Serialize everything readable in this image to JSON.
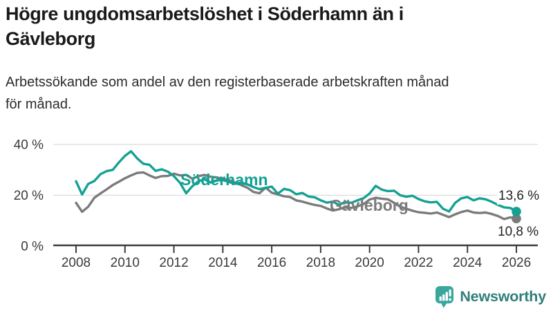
{
  "header": {
    "title_line1": "Högre ungdomsarbetslöshet i Söderhamn än i",
    "title_line2": "Gävleborg",
    "subtitle_line1": "Arbetssökande som andel av den registerbaserade arbetskraften månad",
    "subtitle_line2": "för månad."
  },
  "chart_data": {
    "type": "line",
    "title": "Högre ungdomsarbetslöshet i Söderhamn än i Gävleborg",
    "subtitle": "Arbetssökande som andel av den registerbaserade arbetskraften månad för månad.",
    "xlabel": "",
    "ylabel": "",
    "x_unit": "year (quarterly estimates of monthly series)",
    "x_start": 2008,
    "x_step": 0.25,
    "x_end": 2026,
    "xlim": [
      2007.1,
      2026.9
    ],
    "ylim": [
      0,
      44
    ],
    "x_ticks": [
      2008,
      2010,
      2012,
      2014,
      2016,
      2018,
      2020,
      2022,
      2024,
      2026
    ],
    "y_ticks": [
      0,
      20,
      40
    ],
    "y_tick_labels": [
      "0 %",
      "20 %",
      "40 %"
    ],
    "grid": "horizontal",
    "legend_position": "inline-labels",
    "axis_color": "#3a3a3a",
    "gridline_color": "#dcdcdc",
    "series": [
      {
        "name": "Söderhamn",
        "color": "#13a193",
        "end_label": "13,6 %",
        "end_value": 13.6,
        "values": [
          25.5,
          20.3,
          24.5,
          25.6,
          28.3,
          29.5,
          30.0,
          32.9,
          35.5,
          37.3,
          34.5,
          32.4,
          32.0,
          29.6,
          30.2,
          29.3,
          27.5,
          24.9,
          20.8,
          23.5,
          25.5,
          26.3,
          25.0,
          25.8,
          26.0,
          25.2,
          24.5,
          25.0,
          24.3,
          23.2,
          22.4,
          22.9,
          23.4,
          20.6,
          22.5,
          22.0,
          20.4,
          20.9,
          19.5,
          19.2,
          18.0,
          17.1,
          17.5,
          16.2,
          17.4,
          17.0,
          18.0,
          18.8,
          20.7,
          23.7,
          22.2,
          21.6,
          21.8,
          20.0,
          19.4,
          19.8,
          18.5,
          17.6,
          17.2,
          17.4,
          14.7,
          13.6,
          17.0,
          18.8,
          19.3,
          18.0,
          18.8,
          18.4,
          17.4,
          16.2,
          15.2,
          15.0,
          13.6
        ]
      },
      {
        "name": "Gävleborg",
        "color": "#7b7b7b",
        "end_label": "10,8 %",
        "end_value": 10.8,
        "values": [
          17.0,
          13.5,
          15.5,
          19.0,
          20.7,
          22.3,
          24.0,
          25.3,
          26.7,
          27.8,
          28.8,
          29.0,
          27.8,
          26.8,
          27.5,
          27.6,
          28.5,
          27.8,
          28.0,
          26.5,
          27.5,
          28.0,
          27.3,
          27.0,
          26.5,
          26.0,
          25.0,
          24.0,
          23.0,
          21.3,
          20.8,
          23.0,
          21.0,
          20.3,
          19.6,
          19.3,
          18.0,
          17.5,
          16.8,
          16.2,
          15.8,
          14.8,
          14.0,
          14.5,
          15.3,
          15.0,
          15.6,
          16.5,
          18.3,
          19.0,
          18.6,
          18.4,
          17.0,
          15.5,
          14.7,
          13.9,
          13.3,
          13.1,
          12.8,
          13.2,
          12.3,
          11.4,
          12.5,
          13.4,
          14.0,
          13.2,
          13.0,
          13.2,
          12.6,
          11.8,
          10.6,
          11.3,
          10.8
        ]
      }
    ]
  },
  "footer": {
    "brand": "Newsworthy",
    "brand_color": "#3aa79d",
    "brand_text_color": "#2f7f7a"
  }
}
